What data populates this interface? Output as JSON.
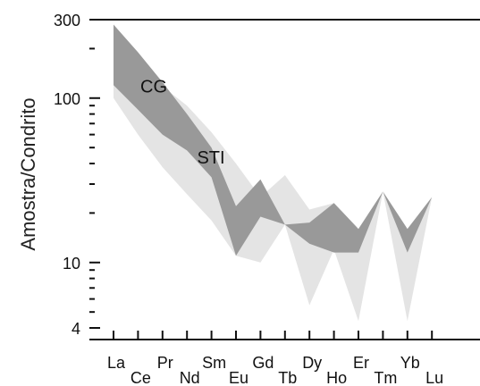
{
  "chart_data": {
    "type": "area",
    "ylabel": "Amostra/Condrito",
    "y_scale": "log",
    "ylim": [
      3.5,
      300
    ],
    "y_tick_labels": [
      "300",
      "100",
      "10",
      "4"
    ],
    "y_tick_values": [
      300,
      100,
      10,
      4
    ],
    "categories": [
      "La",
      "Ce",
      "Pr",
      "Nd",
      "Sm",
      "Eu",
      "Gd",
      "Tb",
      "Dy",
      "Ho",
      "Er",
      "Tm",
      "Yb",
      "Lu"
    ],
    "series": [
      {
        "name": "STI",
        "color": "#e4e4e4",
        "upper": [
          150,
          125,
          118,
          90,
          62,
          40,
          25,
          34,
          21,
          23,
          16,
          27,
          16,
          25
        ],
        "lower": [
          100,
          60,
          38,
          26,
          18,
          11,
          10,
          17,
          5.5,
          12,
          4.4,
          27,
          4.4,
          25
        ]
      },
      {
        "name": "CG",
        "color": "#999999",
        "upper": [
          280,
          190,
          125,
          80,
          50,
          22,
          32,
          17,
          17.5,
          23,
          16,
          27,
          16,
          25
        ],
        "lower": [
          120,
          85,
          60,
          48,
          33,
          11,
          19,
          17,
          13,
          11.5,
          11.5,
          27,
          11.5,
          25
        ]
      }
    ]
  }
}
